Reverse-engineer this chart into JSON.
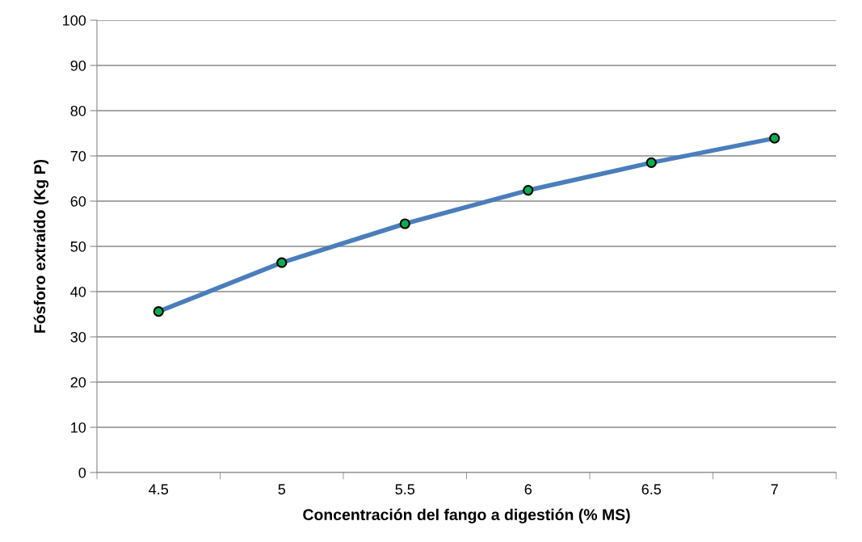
{
  "chart_data": {
    "type": "line",
    "xlabel": "Concentración del fango a digestión (% MS)",
    "ylabel": "Fósforo extraído (Kg P)",
    "categories": [
      "4.5",
      "5",
      "5.5",
      "6",
      "6.5",
      "7"
    ],
    "series": [
      {
        "color": "#4a7ebb",
        "values": [
          35.6,
          46.4,
          55.0,
          62.4,
          68.5,
          73.9
        ]
      }
    ],
    "ylim": [
      0,
      100
    ],
    "yticks": [
      0,
      10,
      20,
      30,
      40,
      50,
      60,
      70,
      80,
      90,
      100
    ],
    "grid": "y",
    "marker": "circle",
    "line_style": "solid"
  }
}
